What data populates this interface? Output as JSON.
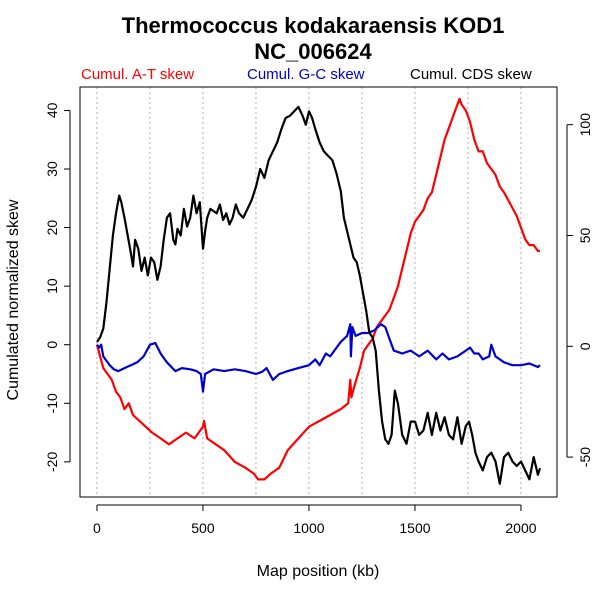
{
  "chart_data": {
    "type": "line",
    "title": "Thermococcus kodakaraensis KOD1",
    "subtitle": "NC_006624",
    "xlabel": "Map position (kb)",
    "ylabel": "Cumulated normalized skew",
    "xlim": [
      -80,
      2170
    ],
    "ylim": [
      -26,
      44
    ],
    "xticks": [
      0,
      500,
      1000,
      1500,
      2000
    ],
    "yticks": [
      -20,
      -10,
      0,
      10,
      20,
      30,
      40
    ],
    "y2lim": [
      -68,
      117
    ],
    "y2ticks": [
      -50,
      0,
      50,
      100
    ],
    "gridlines_x": [
      0,
      250,
      500,
      750,
      1000,
      1250,
      1500,
      1750,
      2000
    ],
    "grid": "vertical dotted",
    "legend_placement": "top",
    "series": [
      {
        "name": "Cumul. A-T skew",
        "color": "#ff0000",
        "axis": "left",
        "x": [
          0,
          15,
          30,
          50,
          70,
          90,
          110,
          130,
          150,
          170,
          200,
          230,
          260,
          300,
          340,
          380,
          420,
          460,
          500,
          505,
          520,
          560,
          600,
          650,
          700,
          740,
          760,
          790,
          820,
          860,
          900,
          950,
          1000,
          1050,
          1100,
          1150,
          1185,
          1195,
          1200,
          1215,
          1240,
          1260,
          1280,
          1300,
          1320,
          1340,
          1360,
          1380,
          1400,
          1420,
          1440,
          1460,
          1480,
          1500,
          1520,
          1540,
          1560,
          1580,
          1600,
          1620,
          1640,
          1660,
          1680,
          1700,
          1710,
          1720,
          1740,
          1760,
          1780,
          1800,
          1820,
          1840,
          1860,
          1880,
          1900,
          1920,
          1950,
          1980,
          2000,
          2020,
          2040,
          2060,
          2080,
          2090
        ],
        "y": [
          0,
          -2,
          -4,
          -5,
          -6,
          -8,
          -9,
          -11,
          -10,
          -12,
          -13,
          -14,
          -15,
          -16,
          -17,
          -16,
          -15,
          -16,
          -14,
          -13,
          -16,
          -17,
          -18,
          -20,
          -21,
          -22,
          -23,
          -23,
          -22,
          -21,
          -18,
          -16,
          -14,
          -13,
          -12,
          -11,
          -10,
          -6,
          -9,
          -7,
          -4,
          -1,
          0,
          1,
          3,
          4,
          5,
          6,
          8,
          10,
          13,
          16,
          19,
          21,
          22,
          23,
          25,
          26,
          29,
          32,
          35,
          37,
          39,
          41,
          42,
          41,
          40,
          38,
          35,
          33,
          33,
          31,
          30,
          29,
          27,
          26,
          24,
          22,
          20,
          18,
          17,
          17,
          16,
          16
        ]
      },
      {
        "name": "Cumul. G-C skew",
        "color": "#0000cc",
        "axis": "left",
        "x": [
          0,
          10,
          20,
          30,
          40,
          60,
          80,
          100,
          130,
          160,
          190,
          220,
          250,
          275,
          300,
          330,
          370,
          400,
          440,
          470,
          490,
          500,
          510,
          550,
          600,
          650,
          700,
          750,
          780,
          800,
          830,
          860,
          900,
          950,
          1000,
          1030,
          1050,
          1080,
          1100,
          1150,
          1180,
          1195,
          1198,
          1205,
          1220,
          1250,
          1280,
          1310,
          1340,
          1360,
          1380,
          1400,
          1440,
          1480,
          1520,
          1560,
          1600,
          1630,
          1660,
          1700,
          1740,
          1760,
          1780,
          1800,
          1820,
          1850,
          1860,
          1880,
          1920,
          1960,
          2000,
          2040,
          2080,
          2090
        ],
        "y": [
          0,
          -0.5,
          0,
          -2,
          -2.5,
          -3.5,
          -4.2,
          -4.5,
          -4.0,
          -3.5,
          -3.0,
          -2.0,
          0,
          0.3,
          -1.5,
          -3.0,
          -4.5,
          -4.0,
          -4.2,
          -4.5,
          -5.0,
          -8.0,
          -5.0,
          -4.2,
          -4.5,
          -4.2,
          -4.5,
          -5.0,
          -4.6,
          -4.0,
          -6.0,
          -5.0,
          -4.5,
          -4.0,
          -3.5,
          -2.5,
          -3.5,
          -1.5,
          -2.0,
          0.5,
          1.5,
          3.5,
          -2.0,
          3.0,
          1.5,
          2.0,
          2.0,
          2.5,
          3.5,
          3.0,
          1.0,
          -1.0,
          -1.5,
          -1.0,
          -2.0,
          -1.0,
          -2.5,
          -1.5,
          -2.5,
          -2.0,
          -1.0,
          -0.5,
          -1.5,
          -1.5,
          -2.5,
          -2.0,
          0,
          -2.0,
          -3.0,
          -3.5,
          -3.5,
          -3.2,
          -3.8,
          -3.5
        ]
      },
      {
        "name": "Cumul. CDS skew",
        "color": "#000000",
        "axis": "right",
        "x": [
          0,
          15,
          30,
          45,
          60,
          75,
          90,
          105,
          115,
          130,
          145,
          160,
          170,
          180,
          195,
          210,
          225,
          240,
          255,
          270,
          285,
          300,
          315,
          330,
          345,
          360,
          370,
          380,
          395,
          410,
          425,
          440,
          455,
          470,
          485,
          500,
          510,
          520,
          535,
          550,
          565,
          580,
          595,
          610,
          625,
          640,
          655,
          670,
          690,
          710,
          730,
          750,
          770,
          790,
          810,
          830,
          850,
          870,
          890,
          910,
          930,
          950,
          970,
          985,
          1000,
          1015,
          1030,
          1050,
          1070,
          1090,
          1110,
          1130,
          1150,
          1165,
          1180,
          1195,
          1210,
          1225,
          1240,
          1255,
          1270,
          1285,
          1300,
          1315,
          1330,
          1345,
          1360,
          1375,
          1390,
          1405,
          1420,
          1440,
          1460,
          1480,
          1500,
          1520,
          1540,
          1560,
          1580,
          1600,
          1620,
          1640,
          1660,
          1680,
          1700,
          1720,
          1740,
          1755,
          1770,
          1785,
          1800,
          1820,
          1840,
          1860,
          1880,
          1900,
          1920,
          1940,
          1960,
          1980,
          2000,
          2020,
          2040,
          2060,
          2080,
          2090
        ],
        "y": [
          2,
          4,
          8,
          20,
          35,
          50,
          60,
          68,
          65,
          58,
          50,
          42,
          36,
          48,
          44,
          34,
          40,
          32,
          40,
          38,
          30,
          36,
          48,
          58,
          60,
          48,
          46,
          53,
          50,
          62,
          54,
          58,
          68,
          60,
          65,
          44,
          52,
          58,
          62,
          61,
          60,
          64,
          57,
          60,
          55,
          58,
          64,
          60,
          58,
          62,
          66,
          72,
          80,
          76,
          84,
          88,
          92,
          98,
          103,
          104,
          106,
          108,
          104,
          100,
          106,
          103,
          98,
          92,
          88,
          86,
          84,
          78,
          70,
          58,
          52,
          46,
          40,
          38,
          32,
          24,
          16,
          6,
          4,
          -2,
          -20,
          -34,
          -42,
          -44,
          -40,
          -20,
          -26,
          -40,
          -44,
          -34,
          -34,
          -40,
          -38,
          -30,
          -40,
          -30,
          -38,
          -32,
          -40,
          -42,
          -32,
          -44,
          -36,
          -34,
          -40,
          -48,
          -52,
          -56,
          -50,
          -48,
          -52,
          -62,
          -50,
          -48,
          -52,
          -54,
          -52,
          -56,
          -60,
          -50,
          -58,
          -55
        ]
      }
    ]
  }
}
